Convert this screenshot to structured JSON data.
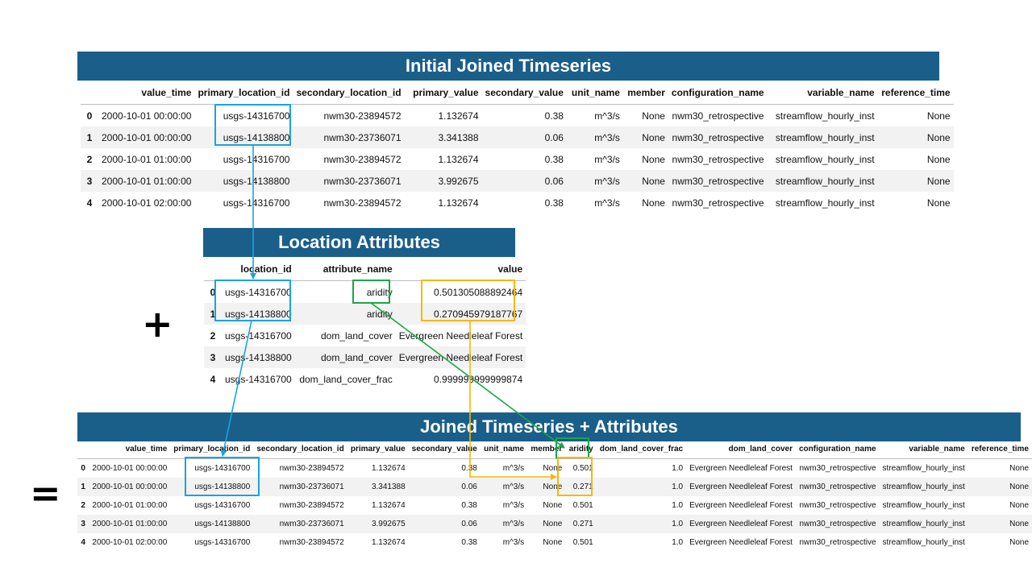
{
  "initial": {
    "title": "Initial Joined Timeseries",
    "columns": [
      "",
      "value_time",
      "primary_location_id",
      "secondary_location_id",
      "primary_value",
      "secondary_value",
      "unit_name",
      "member",
      "configuration_name",
      "variable_name",
      "reference_time"
    ],
    "rows": [
      [
        "0",
        "2000-10-01 00:00:00",
        "usgs-14316700",
        "nwm30-23894572",
        "1.132674",
        "0.38",
        "m^3/s",
        "None",
        "nwm30_retrospective",
        "streamflow_hourly_inst",
        "None"
      ],
      [
        "1",
        "2000-10-01 00:00:00",
        "usgs-14138800",
        "nwm30-23736071",
        "3.341388",
        "0.06",
        "m^3/s",
        "None",
        "nwm30_retrospective",
        "streamflow_hourly_inst",
        "None"
      ],
      [
        "2",
        "2000-10-01 01:00:00",
        "usgs-14316700",
        "nwm30-23894572",
        "1.132674",
        "0.38",
        "m^3/s",
        "None",
        "nwm30_retrospective",
        "streamflow_hourly_inst",
        "None"
      ],
      [
        "3",
        "2000-10-01 01:00:00",
        "usgs-14138800",
        "nwm30-23736071",
        "3.992675",
        "0.06",
        "m^3/s",
        "None",
        "nwm30_retrospective",
        "streamflow_hourly_inst",
        "None"
      ],
      [
        "4",
        "2000-10-01 02:00:00",
        "usgs-14316700",
        "nwm30-23894572",
        "1.132674",
        "0.38",
        "m^3/s",
        "None",
        "nwm30_retrospective",
        "streamflow_hourly_inst",
        "None"
      ]
    ]
  },
  "attributes": {
    "title": "Location Attributes",
    "columns": [
      "",
      "location_id",
      "attribute_name",
      "value"
    ],
    "rows": [
      [
        "0",
        "usgs-14316700",
        "aridity",
        "0.501305088892464"
      ],
      [
        "1",
        "usgs-14138800",
        "aridity",
        "0.270945979187767"
      ],
      [
        "2",
        "usgs-14316700",
        "dom_land_cover",
        "Evergreen Needleleaf Forest"
      ],
      [
        "3",
        "usgs-14138800",
        "dom_land_cover",
        "Evergreen Needleleaf Forest"
      ],
      [
        "4",
        "usgs-14316700",
        "dom_land_cover_frac",
        "0.999999999999874"
      ]
    ]
  },
  "joined": {
    "title": "Joined Timeseries + Attributes",
    "columns": [
      "",
      "value_time",
      "primary_location_id",
      "secondary_location_id",
      "primary_value",
      "secondary_value",
      "unit_name",
      "member",
      "aridity",
      "dom_land_cover_frac",
      "dom_land_cover",
      "configuration_name",
      "variable_name",
      "reference_time"
    ],
    "rows": [
      [
        "0",
        "2000-10-01 00:00:00",
        "usgs-14316700",
        "nwm30-23894572",
        "1.132674",
        "0.38",
        "m^3/s",
        "None",
        "0.501",
        "1.0",
        "Evergreen Needleleaf Forest",
        "nwm30_retrospective",
        "streamflow_hourly_inst",
        "None"
      ],
      [
        "1",
        "2000-10-01 00:00:00",
        "usgs-14138800",
        "nwm30-23736071",
        "3.341388",
        "0.06",
        "m^3/s",
        "None",
        "0.271",
        "1.0",
        "Evergreen Needleleaf Forest",
        "nwm30_retrospective",
        "streamflow_hourly_inst",
        "None"
      ],
      [
        "2",
        "2000-10-01 01:00:00",
        "usgs-14316700",
        "nwm30-23894572",
        "1.132674",
        "0.38",
        "m^3/s",
        "None",
        "0.501",
        "1.0",
        "Evergreen Needleleaf Forest",
        "nwm30_retrospective",
        "streamflow_hourly_inst",
        "None"
      ],
      [
        "3",
        "2000-10-01 01:00:00",
        "usgs-14138800",
        "nwm30-23736071",
        "3.992675",
        "0.06",
        "m^3/s",
        "None",
        "0.271",
        "1.0",
        "Evergreen Needleleaf Forest",
        "nwm30_retrospective",
        "streamflow_hourly_inst",
        "None"
      ],
      [
        "4",
        "2000-10-01 02:00:00",
        "usgs-14316700",
        "nwm30-23894572",
        "1.132674",
        "0.38",
        "m^3/s",
        "None",
        "0.501",
        "1.0",
        "Evergreen Needleleaf Forest",
        "nwm30_retrospective",
        "streamflow_hourly_inst",
        "None"
      ]
    ]
  },
  "symbols": {
    "plus": "+",
    "equals": "="
  },
  "colors": {
    "banner": "#1a5e8a",
    "location_highlight": "#1aa3e0",
    "aridity_highlight": "#1aa64a",
    "value_highlight": "#f5b800"
  }
}
